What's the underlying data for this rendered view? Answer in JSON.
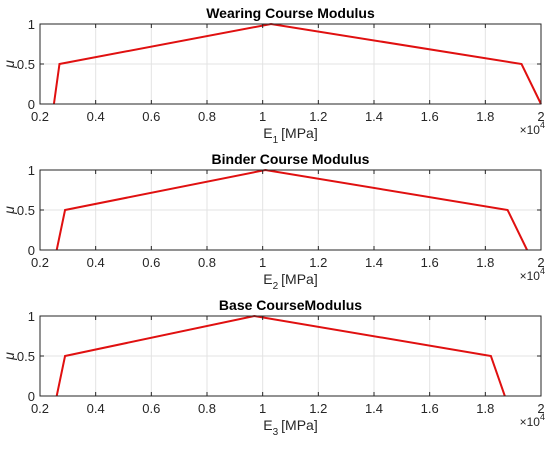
{
  "chart_data": [
    {
      "type": "line",
      "title": "Wearing Course Modulus",
      "xlabel": {
        "main": "E",
        "sub": "1",
        "unit": "[MPa]"
      },
      "ylabel": "μ",
      "xlim": [
        0.2,
        2.0
      ],
      "ylim": [
        0,
        1
      ],
      "xticks": [
        "0.2",
        "0.4",
        "0.6",
        "0.8",
        "1",
        "1.2",
        "1.4",
        "1.6",
        "1.8",
        "2"
      ],
      "yticks": [
        "0",
        "0.5",
        "1"
      ],
      "x_exponent": {
        "base": "×10",
        "power": "4"
      },
      "grid": true,
      "series": [
        {
          "color": "#e01010",
          "x": [
            0.25,
            0.27,
            1.03,
            1.93,
            2.0
          ],
          "y": [
            0,
            0.5,
            1,
            0.5,
            0
          ]
        }
      ]
    },
    {
      "type": "line",
      "title": "Binder Course Modulus",
      "xlabel": {
        "main": "E",
        "sub": "2",
        "unit": "[MPa]"
      },
      "ylabel": "μ",
      "xlim": [
        0.2,
        2.0
      ],
      "ylim": [
        0,
        1
      ],
      "xticks": [
        "0.2",
        "0.4",
        "0.6",
        "0.8",
        "1",
        "1.2",
        "1.4",
        "1.6",
        "1.8",
        "2"
      ],
      "yticks": [
        "0",
        "0.5",
        "1"
      ],
      "x_exponent": {
        "base": "×10",
        "power": "4"
      },
      "grid": true,
      "series": [
        {
          "color": "#e01010",
          "x": [
            0.26,
            0.29,
            1.01,
            1.88,
            1.95
          ],
          "y": [
            0,
            0.5,
            1,
            0.5,
            0
          ]
        }
      ]
    },
    {
      "type": "line",
      "title": "Base CourseModulus",
      "xlabel": {
        "main": "E",
        "sub": "3",
        "unit": "[MPa]"
      },
      "ylabel": "μ",
      "xlim": [
        0.2,
        2.0
      ],
      "ylim": [
        0,
        1
      ],
      "xticks": [
        "0.2",
        "0.4",
        "0.6",
        "0.8",
        "1",
        "1.2",
        "1.4",
        "1.6",
        "1.8",
        "2"
      ],
      "yticks": [
        "0",
        "0.5",
        "1"
      ],
      "x_exponent": {
        "base": "×10",
        "power": "4"
      },
      "grid": true,
      "series": [
        {
          "color": "#e01010",
          "x": [
            0.26,
            0.29,
            0.97,
            1.82,
            1.87
          ],
          "y": [
            0,
            0.5,
            1,
            0.5,
            0
          ]
        }
      ]
    }
  ]
}
